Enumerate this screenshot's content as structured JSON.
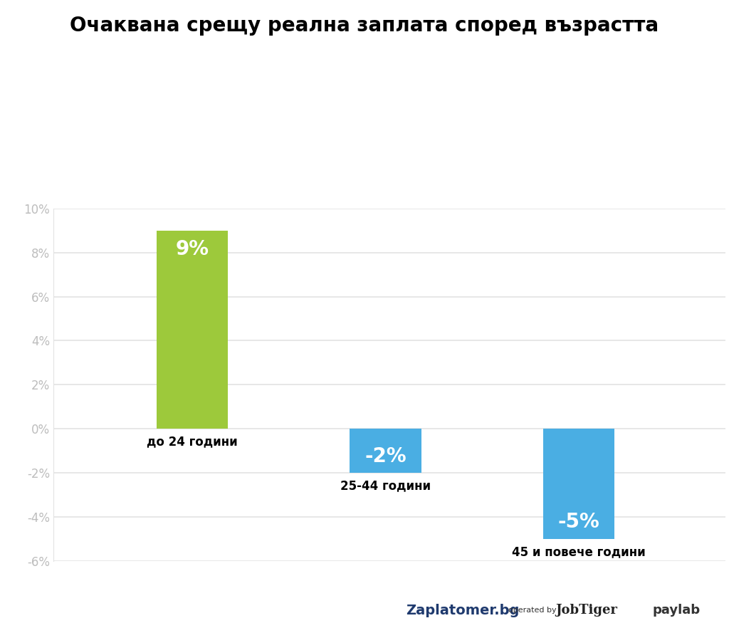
{
  "chart_data": {
    "type": "bar",
    "title": "Очаквана срещу реална заплата според възрастта",
    "categories": [
      "до 24 години",
      "25-44 години",
      "45 и повече години"
    ],
    "values": [
      9,
      -2,
      -5
    ],
    "value_labels": [
      "9%",
      "-2%",
      "-5%"
    ],
    "colors": [
      "#9dc93b",
      "#4aaee3",
      "#4aaee3"
    ],
    "ylim": [
      -6,
      10
    ],
    "yticks": [
      {
        "value": -6,
        "label": "-6%"
      },
      {
        "value": -4,
        "label": "-4%"
      },
      {
        "value": -2,
        "label": "-2%"
      },
      {
        "value": 0,
        "label": "0%"
      },
      {
        "value": 2,
        "label": "2%"
      },
      {
        "value": 4,
        "label": "4%"
      },
      {
        "value": 6,
        "label": "6%"
      },
      {
        "value": 8,
        "label": "8%"
      },
      {
        "value": 10,
        "label": "10%"
      }
    ],
    "grid": true,
    "data_labels": true,
    "tick_labels": "y",
    "annotations": [
      "Zaplatomer.bg",
      "operated by",
      "JobTiger",
      "paylab"
    ]
  }
}
